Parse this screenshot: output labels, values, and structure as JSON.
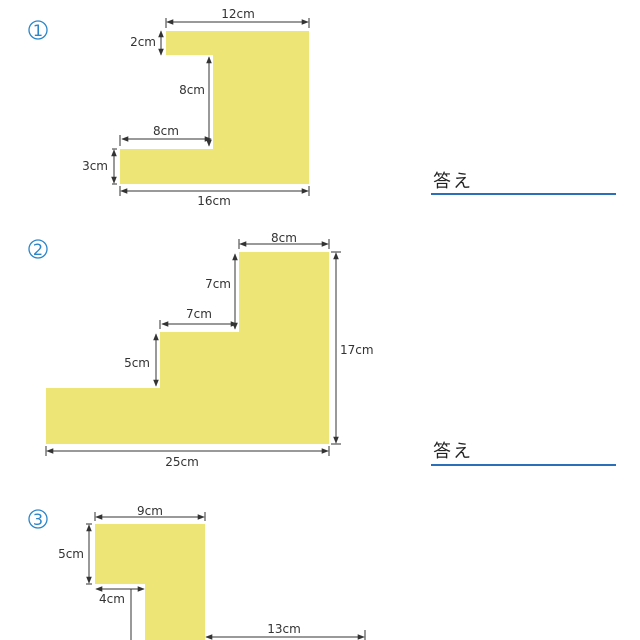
{
  "problems": [
    {
      "number": "1",
      "answer_label": "答え",
      "dims": {
        "top": "12cm",
        "left_top": "2cm",
        "inner_vertical": "8cm",
        "inner_horizontal": "8cm",
        "left_bottom": "3cm",
        "bottom": "16cm"
      }
    },
    {
      "number": "2",
      "answer_label": "答え",
      "dims": {
        "top": "8cm",
        "step1_vertical": "7cm",
        "step1_horizontal": "7cm",
        "step2_vertical": "5cm",
        "right": "17cm",
        "bottom": "25cm"
      }
    },
    {
      "number": "3",
      "dims": {
        "top": "9cm",
        "left": "5cm",
        "inner_horizontal": "4cm",
        "lower_right": "13cm"
      }
    }
  ]
}
